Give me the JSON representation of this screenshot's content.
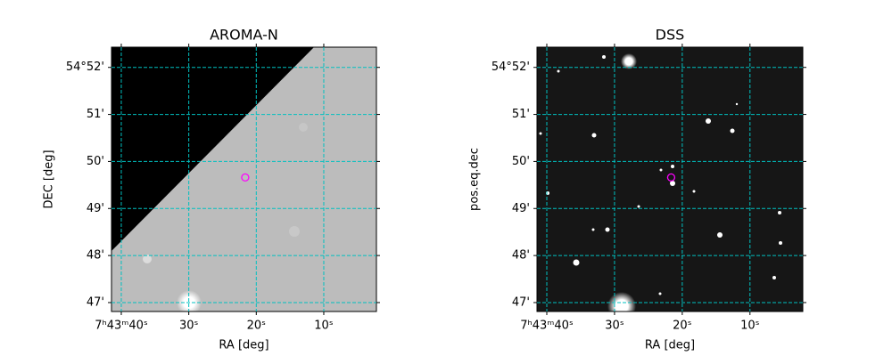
{
  "chart_data": [
    {
      "type": "image",
      "title": "AROMA-N",
      "xlabel": "RA [deg]",
      "ylabel": "DEC [deg]",
      "xlim": [
        41.45,
        2.2
      ],
      "ylim": [
        46.81,
        52.43
      ],
      "xticks": [
        {
          "value": 40,
          "label": "7ʰ43ᵐ40ˢ"
        },
        {
          "value": 30,
          "label": "30ˢ"
        },
        {
          "value": 20,
          "label": "20ˢ"
        },
        {
          "value": 10,
          "label": "10ˢ"
        }
      ],
      "yticks": [
        {
          "value": 52,
          "label": "54°52'"
        },
        {
          "value": 51,
          "label": "51'"
        },
        {
          "value": 50,
          "label": "50'"
        },
        {
          "value": 49,
          "label": "49'"
        },
        {
          "value": 48,
          "label": "48'"
        },
        {
          "value": 47,
          "label": "47'"
        }
      ],
      "grid": true,
      "grid_color": "#00c0c0",
      "markers": {
        "x": [
          21.64
        ],
        "y": [
          49.66
        ],
        "color": "#ff00ff"
      }
    },
    {
      "type": "image",
      "title": "DSS",
      "xlabel": "RA [deg]",
      "ylabel": "pos.eq.dec",
      "xlim": [
        41.45,
        2.2
      ],
      "ylim": [
        46.81,
        52.43
      ],
      "xticks": [
        {
          "value": 40,
          "label": "7ʰ43ᵐ40ˢ"
        },
        {
          "value": 30,
          "label": "30ˢ"
        },
        {
          "value": 20,
          "label": "20ˢ"
        },
        {
          "value": 10,
          "label": "10ˢ"
        }
      ],
      "yticks": [
        {
          "value": 52,
          "label": "54°52'"
        },
        {
          "value": 51,
          "label": "51'"
        },
        {
          "value": 50,
          "label": "50'"
        },
        {
          "value": 49,
          "label": "49'"
        },
        {
          "value": 48,
          "label": "48'"
        },
        {
          "value": 47,
          "label": "47'"
        }
      ],
      "grid": true,
      "grid_color": "#00c0c0",
      "markers": {
        "x": [
          21.64
        ],
        "y": [
          49.66
        ],
        "color": "#ff00ff"
      }
    }
  ]
}
